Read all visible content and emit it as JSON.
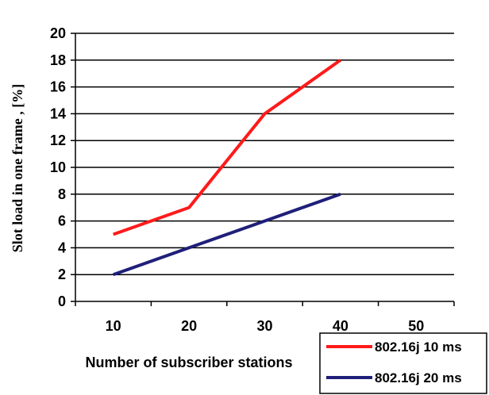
{
  "chart_data": {
    "type": "line",
    "title": "",
    "xlabel": "Number of subscriber stations",
    "ylabel": "Slot load in one frame , [%]",
    "categories": [
      10,
      20,
      30,
      40,
      50
    ],
    "ylim": [
      0,
      20
    ],
    "yticks": [
      0,
      2,
      4,
      6,
      8,
      10,
      12,
      14,
      16,
      18,
      20
    ],
    "grid": "horizontal",
    "legend": "bottom-right",
    "series": [
      {
        "name": "802.16j 10 ms",
        "color": "#ff1a1a",
        "x": [
          10,
          20,
          30,
          40
        ],
        "values": [
          5,
          7,
          14,
          18
        ]
      },
      {
        "name": "802.16j 20 ms",
        "color": "#1f1f7a",
        "x": [
          10,
          20,
          30,
          40
        ],
        "values": [
          2,
          4,
          6,
          8
        ]
      }
    ]
  }
}
